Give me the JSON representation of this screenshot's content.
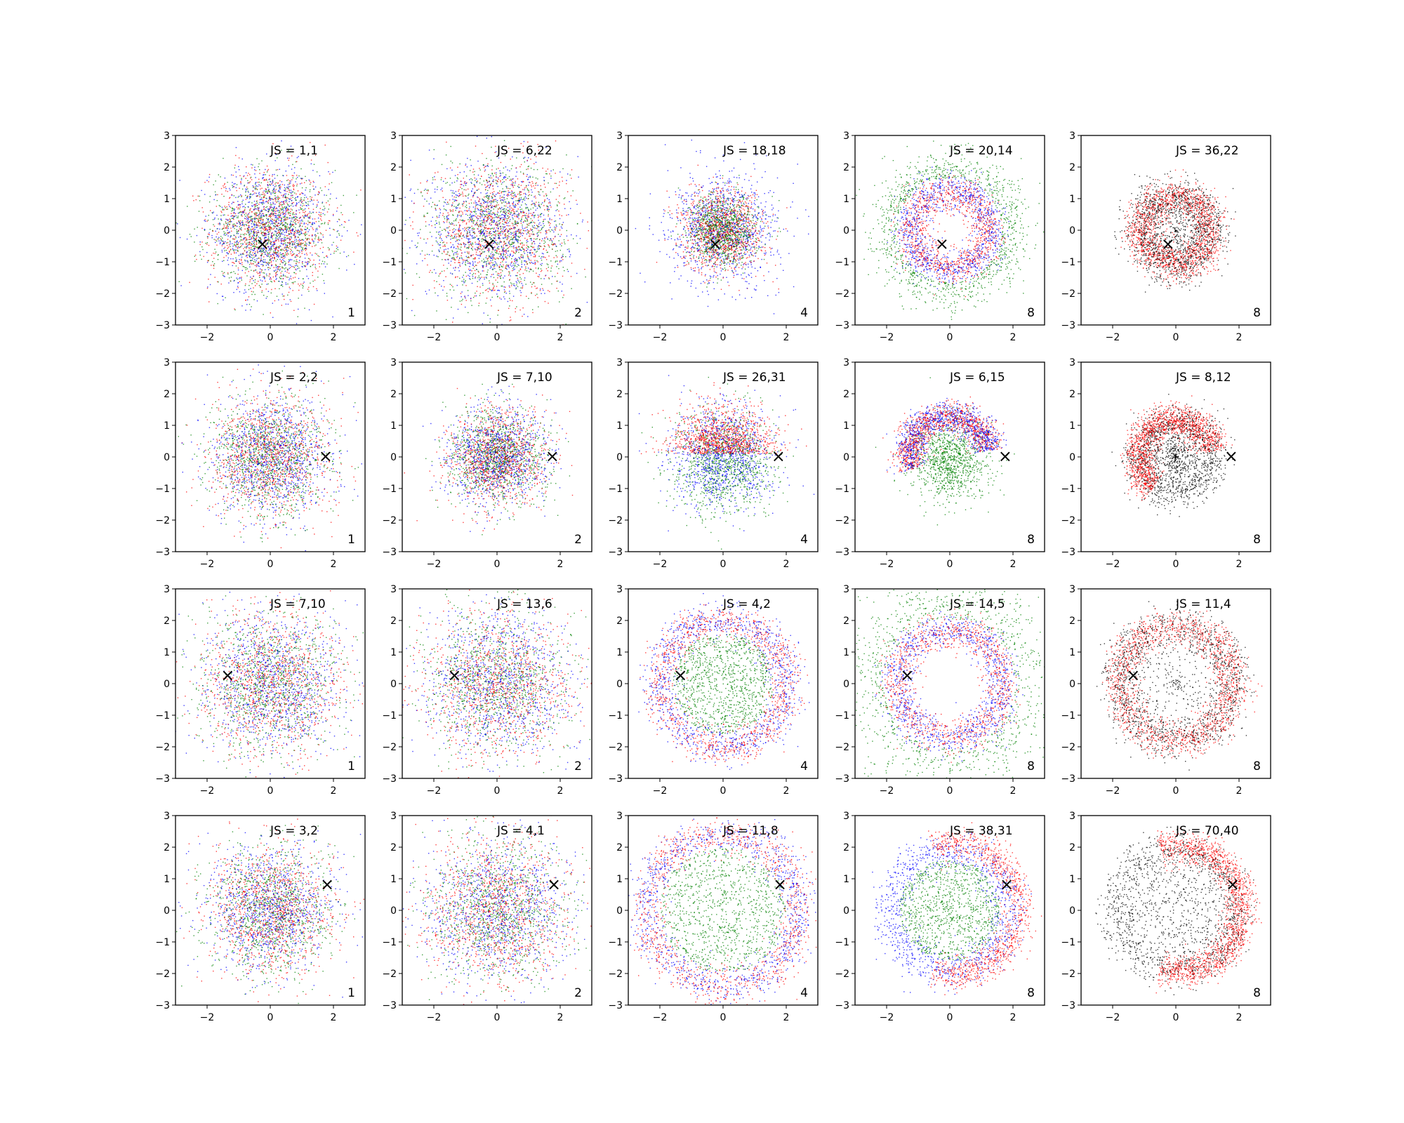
{
  "chart_data": {
    "type": "scatter",
    "layout": {
      "rows": 4,
      "cols": 5
    },
    "xlim": [
      -3,
      3
    ],
    "ylim": [
      -3,
      3
    ],
    "xticks": [
      -2,
      0,
      2
    ],
    "yticks": [
      -3,
      -2,
      -1,
      0,
      1,
      2,
      3
    ],
    "marker_symbol": "×",
    "colors": {
      "red": "#ff0000",
      "green": "#008000",
      "blue": "#0000ff",
      "black": "#000000"
    },
    "panels": [
      {
        "js_label": "JS = 1,1",
        "corner": "1",
        "marker": [
          -0.25,
          -0.45
        ],
        "pattern": "blob",
        "colors": [
          "red",
          "green",
          "blue"
        ],
        "radius": 2.0
      },
      {
        "js_label": "JS = 6,22",
        "corner": "2",
        "marker": [
          -0.25,
          -0.45
        ],
        "pattern": "blob",
        "colors": [
          "red",
          "green",
          "blue"
        ],
        "radius": 2.3
      },
      {
        "js_label": "JS = 18,18",
        "corner": "4",
        "marker": [
          -0.25,
          -0.45
        ],
        "pattern": "blob_green_core",
        "colors": [
          "red",
          "green",
          "blue"
        ],
        "radius": 1.7
      },
      {
        "js_label": "JS = 20,14",
        "corner": "8",
        "marker": [
          -0.25,
          -0.45
        ],
        "pattern": "ring_green_outer",
        "colors": [
          "red",
          "green",
          "blue"
        ],
        "radius": 1.3
      },
      {
        "js_label": "JS = 36,22",
        "corner": "8",
        "marker": [
          -0.25,
          -0.45
        ],
        "pattern": "ring_red_black",
        "colors": [
          "red",
          "black"
        ],
        "radius": 1.1
      },
      {
        "js_label": "JS = 2,2",
        "corner": "1",
        "marker": [
          1.75,
          0.0
        ],
        "pattern": "blob",
        "colors": [
          "red",
          "green",
          "blue"
        ],
        "radius": 2.0
      },
      {
        "js_label": "JS = 7,10",
        "corner": "2",
        "marker": [
          1.75,
          0.0
        ],
        "pattern": "blob",
        "colors": [
          "red",
          "green",
          "blue"
        ],
        "radius": 1.6
      },
      {
        "js_label": "JS = 26,31",
        "corner": "4",
        "marker": [
          1.75,
          0.0
        ],
        "pattern": "blob_red_top",
        "colors": [
          "red",
          "green",
          "blue"
        ],
        "radius": 1.8
      },
      {
        "js_label": "JS = 6,15",
        "corner": "8",
        "marker": [
          1.75,
          0.0
        ],
        "pattern": "arc_green_center",
        "colors": [
          "red",
          "green",
          "blue"
        ],
        "radius": 1.3
      },
      {
        "js_label": "JS = 8,12",
        "corner": "8",
        "marker": [
          1.75,
          0.0
        ],
        "pattern": "arc_red_black",
        "colors": [
          "red",
          "black"
        ],
        "radius": 1.2
      },
      {
        "js_label": "JS = 7,10",
        "corner": "1",
        "marker": [
          -1.35,
          0.25
        ],
        "pattern": "blob",
        "colors": [
          "red",
          "green",
          "blue"
        ],
        "radius": 2.4
      },
      {
        "js_label": "JS = 13,6",
        "corner": "2",
        "marker": [
          -1.35,
          0.25
        ],
        "pattern": "blob_wide",
        "colors": [
          "red",
          "green",
          "blue"
        ],
        "radius": 2.5
      },
      {
        "js_label": "JS = 4,2",
        "corner": "4",
        "marker": [
          -1.35,
          0.25
        ],
        "pattern": "ring_green_inner",
        "colors": [
          "red",
          "green",
          "blue"
        ],
        "radius": 2.0
      },
      {
        "js_label": "JS = 14,5",
        "corner": "8",
        "marker": [
          -1.35,
          0.25
        ],
        "pattern": "ring_green_outer_wide",
        "colors": [
          "red",
          "green",
          "blue"
        ],
        "radius": 1.7
      },
      {
        "js_label": "JS = 11,4",
        "corner": "8",
        "marker": [
          -1.35,
          0.25
        ],
        "pattern": "ring_red_black",
        "colors": [
          "red",
          "black"
        ],
        "radius": 1.8
      },
      {
        "js_label": "JS = 3,2",
        "corner": "1",
        "marker": [
          1.8,
          0.8
        ],
        "pattern": "blob",
        "colors": [
          "red",
          "green",
          "blue"
        ],
        "radius": 2.1
      },
      {
        "js_label": "JS = 4,1",
        "corner": "2",
        "marker": [
          1.8,
          0.8
        ],
        "pattern": "blob_wide",
        "colors": [
          "red",
          "green",
          "blue"
        ],
        "radius": 2.4
      },
      {
        "js_label": "JS = 11,8",
        "corner": "4",
        "marker": [
          1.8,
          0.8
        ],
        "pattern": "ring_green_inner",
        "colors": [
          "red",
          "green",
          "blue"
        ],
        "radius": 2.4
      },
      {
        "js_label": "JS = 38,31",
        "corner": "8",
        "marker": [
          1.8,
          0.8
        ],
        "pattern": "ring_red_right",
        "colors": [
          "red",
          "green",
          "blue"
        ],
        "radius": 2.1
      },
      {
        "js_label": "JS = 70,40",
        "corner": "8",
        "marker": [
          1.8,
          0.8
        ],
        "pattern": "ring_red_right_black",
        "colors": [
          "red",
          "black"
        ],
        "radius": 2.0
      }
    ]
  }
}
